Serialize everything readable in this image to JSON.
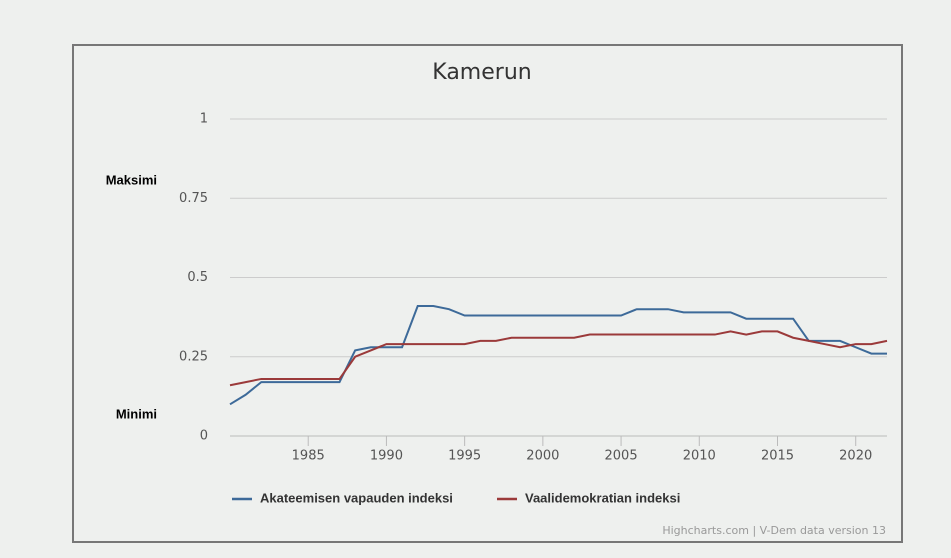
{
  "chart_data": {
    "type": "line",
    "title": "Kamerun",
    "annotations": [
      "Maksimi",
      "Minimi"
    ],
    "credits": "Highcharts.com | V-Dem data version 13",
    "x": [
      1980,
      1981,
      1982,
      1983,
      1984,
      1985,
      1986,
      1987,
      1988,
      1989,
      1990,
      1991,
      1992,
      1993,
      1994,
      1995,
      1996,
      1997,
      1998,
      1999,
      2000,
      2001,
      2002,
      2003,
      2004,
      2005,
      2006,
      2007,
      2008,
      2009,
      2010,
      2011,
      2012,
      2013,
      2014,
      2015,
      2016,
      2017,
      2018,
      2019,
      2020,
      2021,
      2022
    ],
    "series": [
      {
        "name": "Akateemisen vapauden indeksi",
        "color": "#3d6a99",
        "values": [
          0.1,
          0.13,
          0.17,
          0.17,
          0.17,
          0.17,
          0.17,
          0.17,
          0.27,
          0.28,
          0.28,
          0.28,
          0.41,
          0.41,
          0.4,
          0.38,
          0.38,
          0.38,
          0.38,
          0.38,
          0.38,
          0.38,
          0.38,
          0.38,
          0.38,
          0.38,
          0.4,
          0.4,
          0.4,
          0.39,
          0.39,
          0.39,
          0.39,
          0.37,
          0.37,
          0.37,
          0.37,
          0.3,
          0.3,
          0.3,
          0.28,
          0.26,
          0.26
        ]
      },
      {
        "name": "Vaalidemokratian indeksi",
        "color": "#9b3a3a",
        "values": [
          0.16,
          0.17,
          0.18,
          0.18,
          0.18,
          0.18,
          0.18,
          0.18,
          0.25,
          0.27,
          0.29,
          0.29,
          0.29,
          0.29,
          0.29,
          0.29,
          0.3,
          0.3,
          0.31,
          0.31,
          0.31,
          0.31,
          0.31,
          0.32,
          0.32,
          0.32,
          0.32,
          0.32,
          0.32,
          0.32,
          0.32,
          0.32,
          0.33,
          0.32,
          0.33,
          0.33,
          0.31,
          0.3,
          0.29,
          0.28,
          0.29,
          0.29,
          0.3
        ]
      }
    ],
    "xlim": [
      1980,
      2022
    ],
    "xticks": [
      1985,
      1990,
      1995,
      2000,
      2005,
      2010,
      2015,
      2020
    ],
    "ylim": [
      0,
      1
    ],
    "yticks": [
      0,
      0.25,
      0.5,
      0.75,
      1
    ],
    "grid": true,
    "legend": "bottom"
  }
}
